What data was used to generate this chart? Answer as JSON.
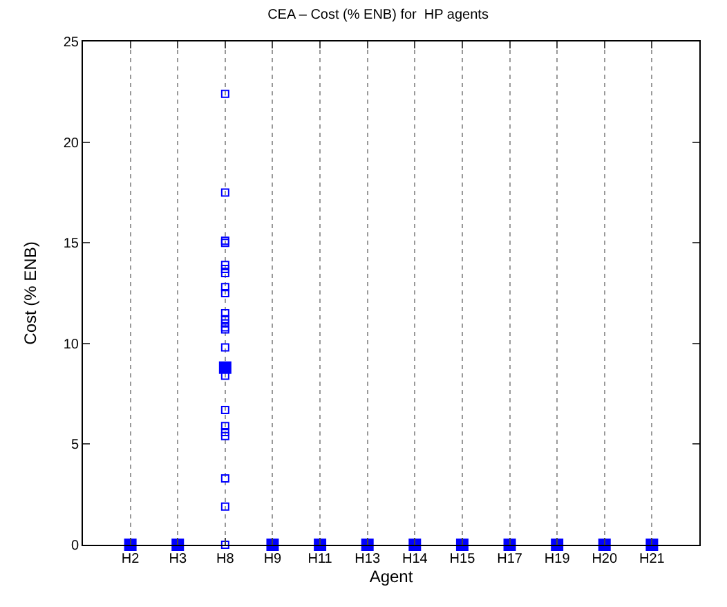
{
  "chart_data": {
    "type": "scatter",
    "title": "CEA – Cost (% ENB) for  HP agents",
    "xlabel": "Agent",
    "ylabel": "Cost (% ENB)",
    "categories": [
      "H2",
      "H3",
      "H8",
      "H9",
      "H11",
      "H13",
      "H14",
      "H15",
      "H17",
      "H19",
      "H20",
      "H21"
    ],
    "ylim": [
      0,
      25
    ],
    "yticks": [
      0,
      5,
      10,
      15,
      20,
      25
    ],
    "grid": "x",
    "marker": "square",
    "series": [
      {
        "color": "#0000ff",
        "x": [
          "H8",
          "H8",
          "H8",
          "H8",
          "H8",
          "H8",
          "H8",
          "H8",
          "H8",
          "H8",
          "H8",
          "H8",
          "H8",
          "H8",
          "H8",
          "H8",
          "H8",
          "H8",
          "H8",
          "H8",
          "H8",
          "H8",
          "H8"
        ],
        "values": [
          22.4,
          17.5,
          15.1,
          15.0,
          13.9,
          13.7,
          13.5,
          12.8,
          12.5,
          11.5,
          11.2,
          11.0,
          10.8,
          10.7,
          9.8,
          8.4,
          6.7,
          5.9,
          5.6,
          5.4,
          3.3,
          1.9,
          0
        ]
      },
      {
        "color": "#0000ff",
        "values": [
          0,
          0,
          8.8,
          0,
          0,
          0,
          0,
          0,
          0,
          0,
          0,
          0
        ]
      }
    ]
  }
}
